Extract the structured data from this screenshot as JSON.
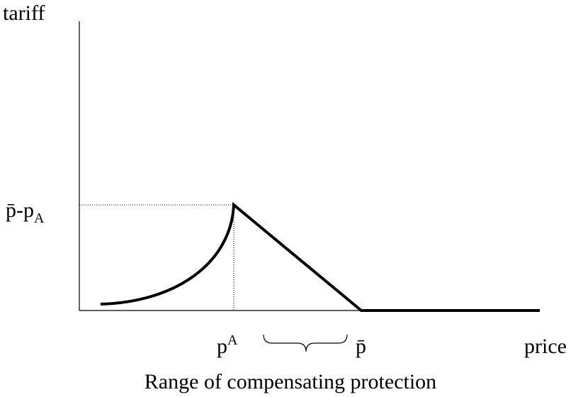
{
  "axes": {
    "y_label": "tariff",
    "x_label": "price"
  },
  "labels": {
    "peak_tariff": {
      "main": "p̄-p",
      "sub": "A"
    },
    "autarky_price": {
      "main": "p",
      "sup": "A"
    },
    "world_price": "p̄",
    "range": "Range of compensating protection"
  }
}
